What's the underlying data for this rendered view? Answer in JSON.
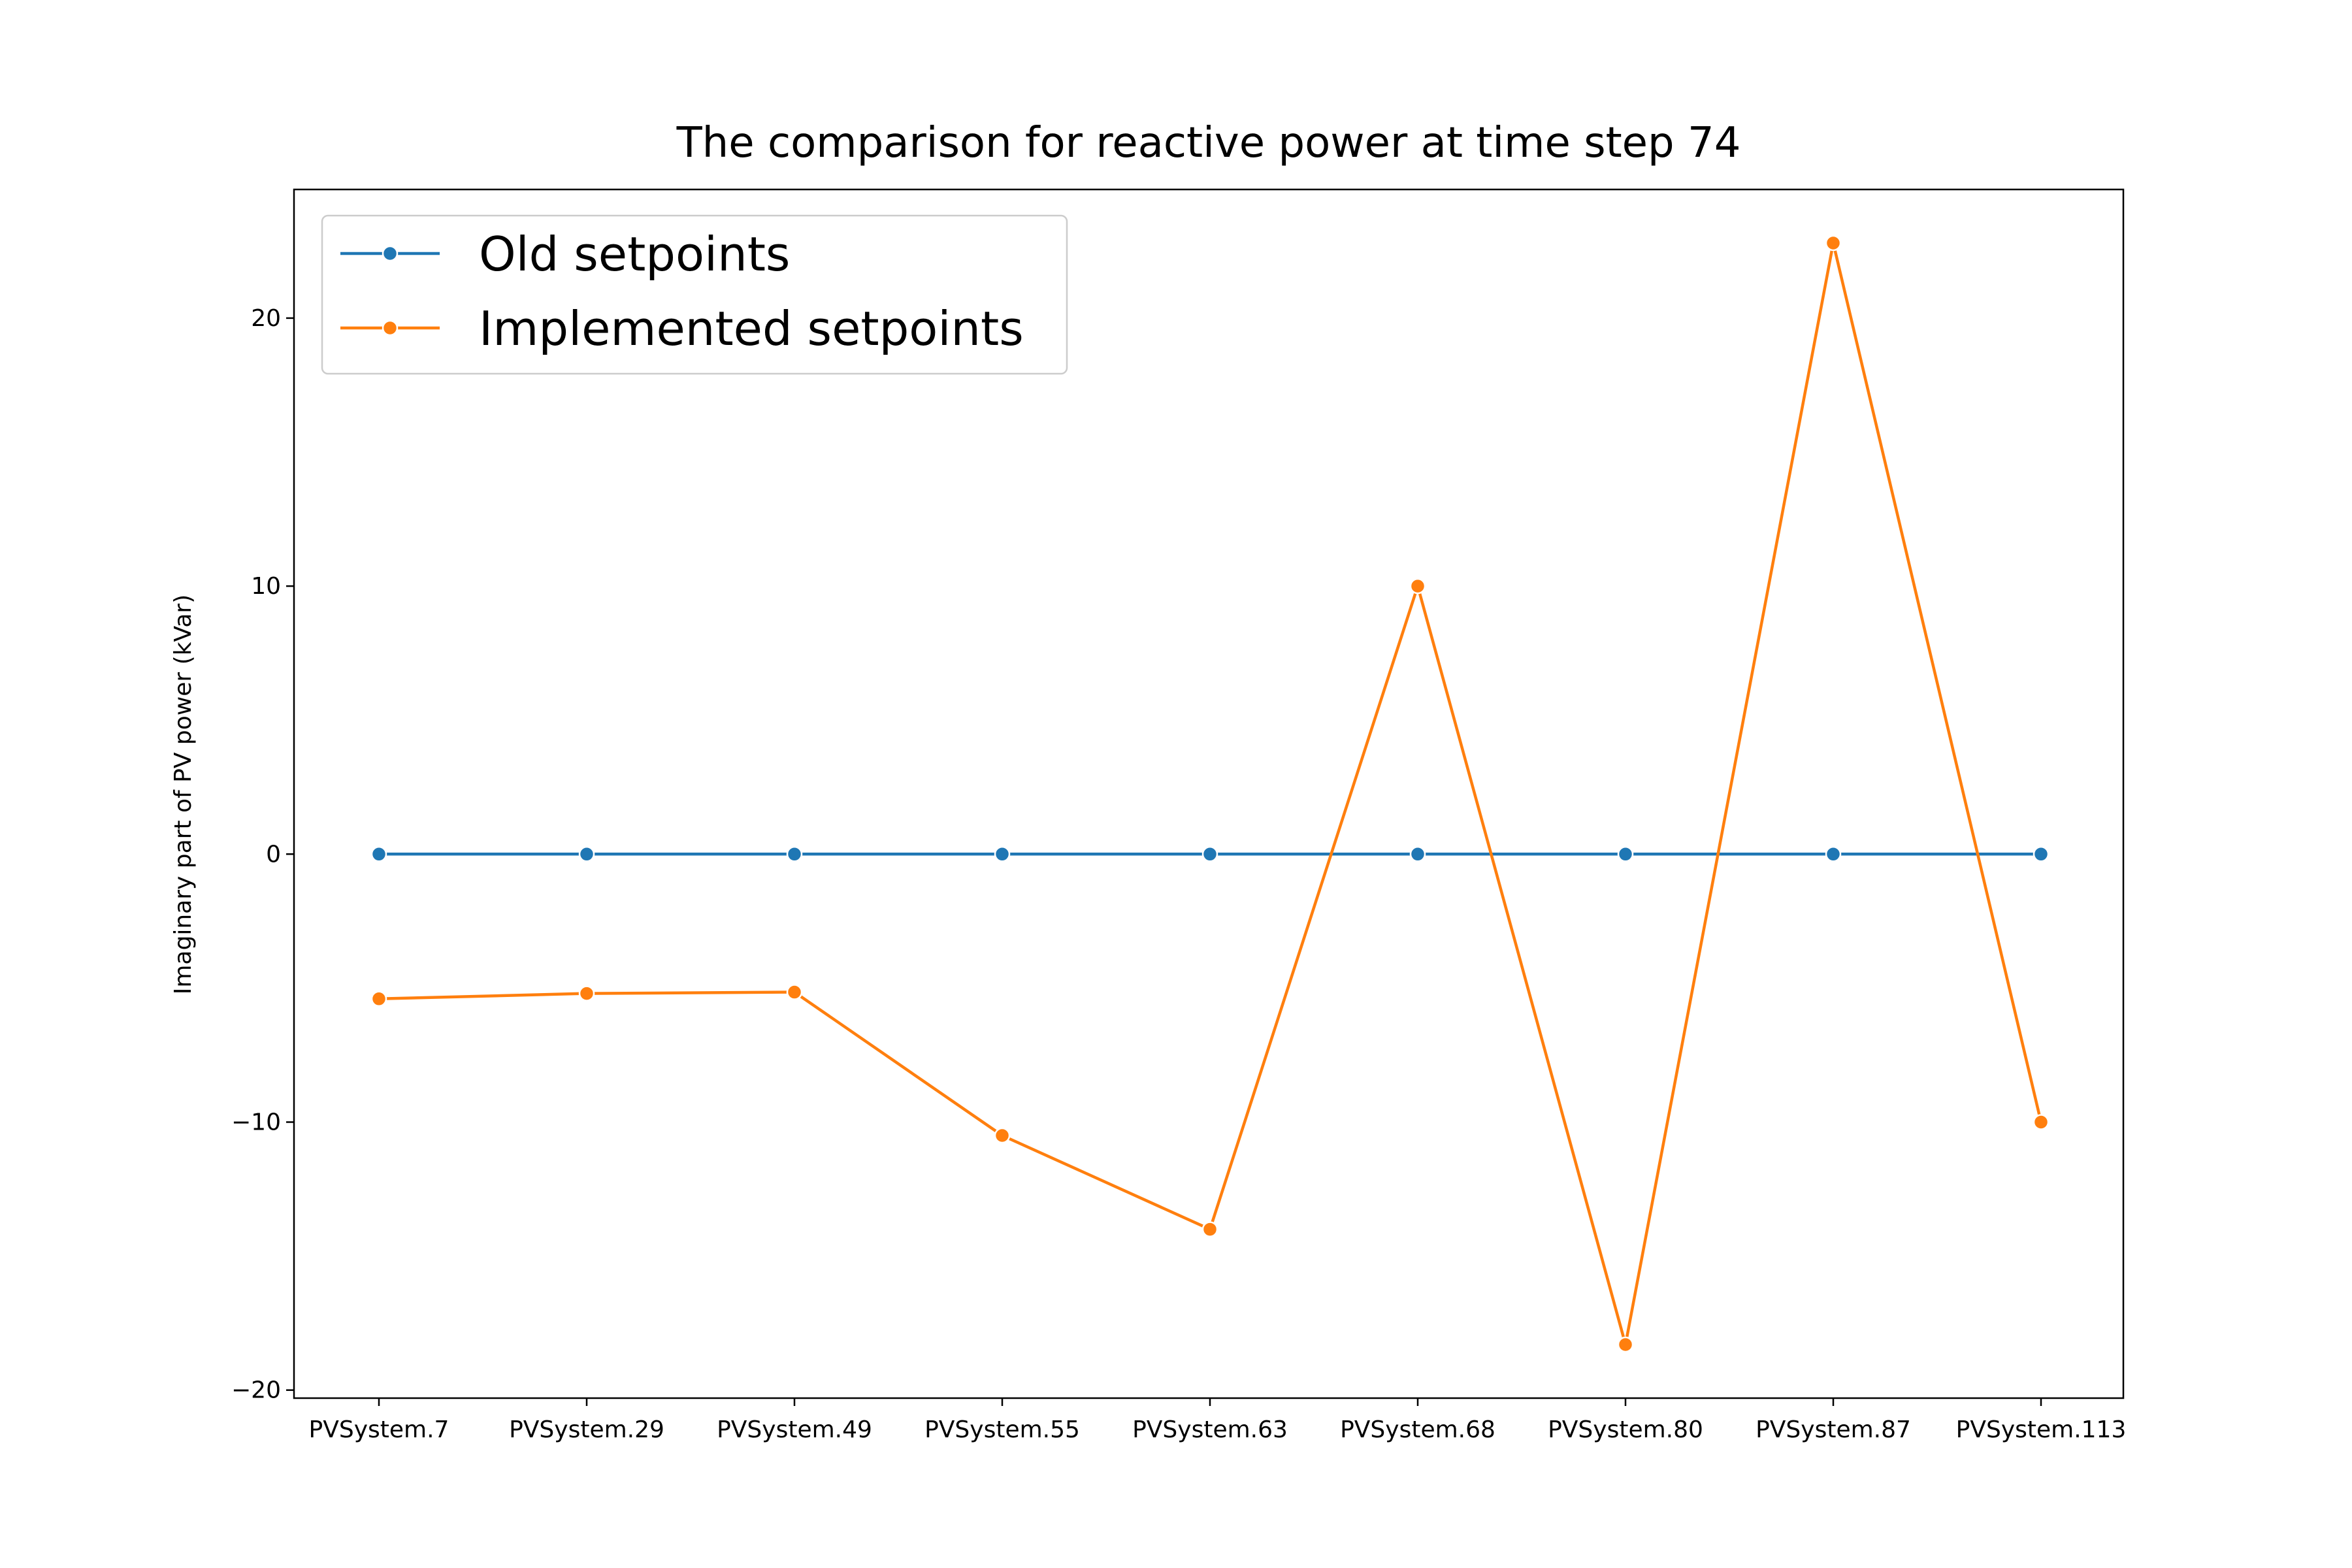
{
  "chart_data": {
    "type": "line",
    "title": "The comparison for reactive power at time step 74",
    "xlabel": "",
    "ylabel": "Imaginary part of PV power (kVar)",
    "ylim": [
      -20.3,
      24.8
    ],
    "grid": false,
    "legend_position": "top-left",
    "categories": [
      "PVSystem.7",
      "PVSystem.29",
      "PVSystem.49",
      "PVSystem.55",
      "PVSystem.63",
      "PVSystem.68",
      "PVSystem.80",
      "PVSystem.87",
      "PVSystem.113"
    ],
    "yticks": [
      -20,
      -10,
      0,
      10,
      20
    ],
    "ytick_labels": [
      "−20",
      "−10",
      "0",
      "10",
      "20"
    ],
    "series": [
      {
        "name": "Old setpoints",
        "color": "#1f77b4",
        "values": [
          0,
          0,
          0,
          0,
          0,
          0,
          0,
          0,
          0
        ]
      },
      {
        "name": "Implemented setpoints",
        "color": "#ff7f0e",
        "values": [
          -5.4,
          -5.2,
          -5.15,
          -10.5,
          -14.0,
          10.0,
          -18.3,
          22.8,
          -10.0
        ]
      }
    ]
  }
}
